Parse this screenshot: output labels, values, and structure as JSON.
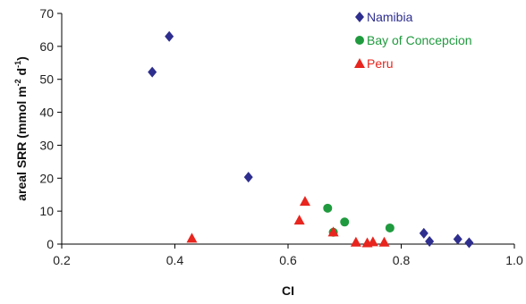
{
  "chart_data": {
    "type": "scatter",
    "xlabel": "CI",
    "ylabel": "areal SRR (mmol m",
    "ylabel_sup1": "-2",
    "ylabel_mid": " d",
    "ylabel_sup2": "-1",
    "ylabel_end": ")",
    "xlim": [
      0.2,
      1.0
    ],
    "ylim": [
      0,
      70
    ],
    "x_ticks": [
      "0.2",
      "0.4",
      "0.6",
      "0.8",
      "1.0"
    ],
    "y_ticks": [
      "0",
      "10",
      "20",
      "30",
      "40",
      "50",
      "60",
      "70"
    ],
    "grid": false,
    "legend_position": "top-right",
    "series": [
      {
        "name": "Namibia",
        "marker": "diamond",
        "color": "#2e2e8f",
        "points": [
          {
            "x": 0.36,
            "y": 52.2
          },
          {
            "x": 0.39,
            "y": 63.0
          },
          {
            "x": 0.53,
            "y": 20.3
          },
          {
            "x": 0.84,
            "y": 3.3
          },
          {
            "x": 0.85,
            "y": 0.8
          },
          {
            "x": 0.9,
            "y": 1.5
          },
          {
            "x": 0.92,
            "y": 0.4
          }
        ]
      },
      {
        "name": "Bay of Concepcion",
        "marker": "circle",
        "color": "#1f9a3e",
        "points": [
          {
            "x": 0.67,
            "y": 10.9
          },
          {
            "x": 0.68,
            "y": 3.6
          },
          {
            "x": 0.7,
            "y": 6.7
          },
          {
            "x": 0.78,
            "y": 4.9
          }
        ]
      },
      {
        "name": "Peru",
        "marker": "triangle",
        "color": "#e8251e",
        "points": [
          {
            "x": 0.43,
            "y": 1.8
          },
          {
            "x": 0.62,
            "y": 7.3
          },
          {
            "x": 0.63,
            "y": 13.0
          },
          {
            "x": 0.68,
            "y": 3.7
          },
          {
            "x": 0.72,
            "y": 0.6
          },
          {
            "x": 0.74,
            "y": 0.4
          },
          {
            "x": 0.75,
            "y": 0.7
          },
          {
            "x": 0.77,
            "y": 0.6
          }
        ]
      }
    ]
  }
}
